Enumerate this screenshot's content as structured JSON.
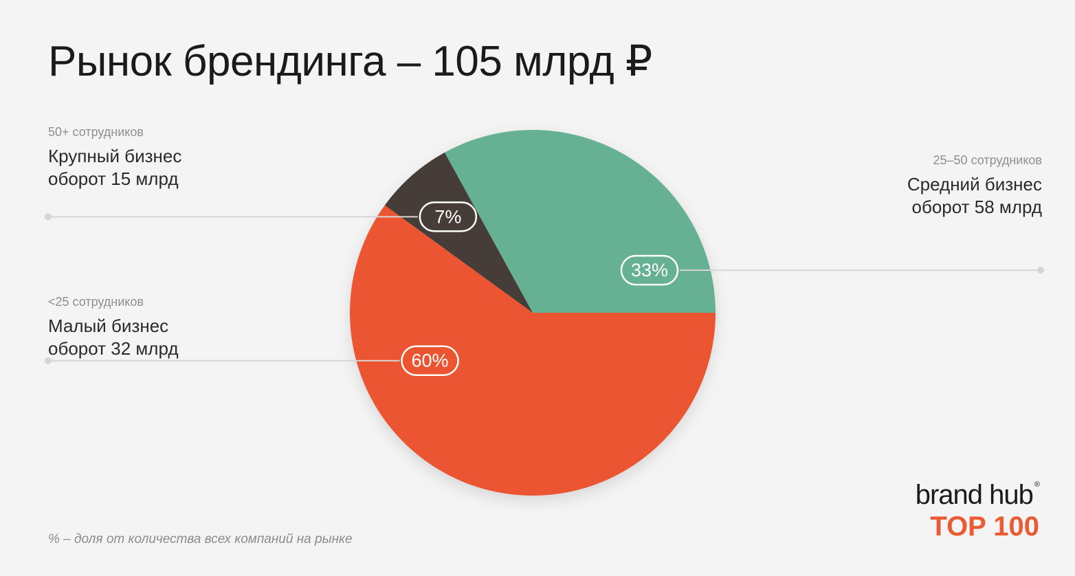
{
  "title": "Рынок брендинга – 105 млрд ₽",
  "chart_data": {
    "type": "pie",
    "categories": [
      "Средний бизнес",
      "Малый бизнес",
      "Крупный бизнес"
    ],
    "values": [
      33,
      60,
      7
    ],
    "colors": [
      "#66b093",
      "#eb5530",
      "#463d37"
    ],
    "data_labels": [
      "33%",
      "60%",
      "7%"
    ],
    "segments": [
      {
        "sub": "25–50 сотрудников",
        "name": "Средний бизнес",
        "turnover": "оборот 58 млрд"
      },
      {
        "sub": "<25 сотрудников",
        "name": "Малый бизнес",
        "turnover": "оборот 32 млрд"
      },
      {
        "sub": "50+ сотрудников",
        "name": "Крупный бизнес",
        "turnover": "оборот 15 млрд"
      }
    ]
  },
  "footnote": "% – доля от количества всех компаний на рынке",
  "logo": {
    "top": "brand hub",
    "reg": "®",
    "bottom": "TOP 100"
  }
}
